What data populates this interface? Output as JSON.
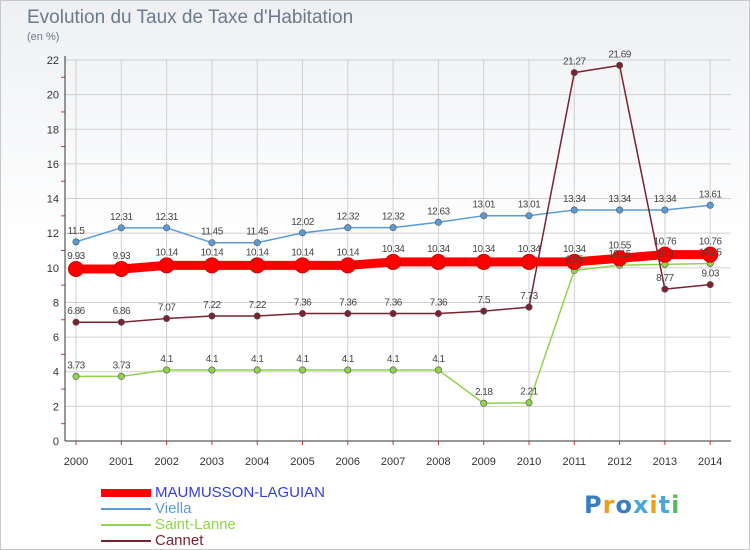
{
  "title": "Evolution du Taux de Taxe d'Habitation",
  "unit_label": "(en %)",
  "logo": {
    "text": "Proxiti",
    "colors": [
      "#3a7ec2",
      "#e8a020",
      "#3a7ec2",
      "#4aa8d8",
      "#e8a020",
      "#4aa8d8",
      "#5cb85c"
    ]
  },
  "chart_data": {
    "type": "line",
    "x": [
      "2000",
      "2001",
      "2002",
      "2003",
      "2004",
      "2005",
      "2006",
      "2007",
      "2008",
      "2009",
      "2010",
      "2011",
      "2012",
      "2013",
      "2014"
    ],
    "ylim": [
      0,
      22
    ],
    "yticks": [
      "0",
      "2",
      "4",
      "6",
      "8",
      "10",
      "12",
      "14",
      "16",
      "18",
      "20",
      "22"
    ],
    "grid": true,
    "legend_position": "bottom-left",
    "series": [
      {
        "name": "MAUMUSSON-LAGUIAN",
        "color": "#ff0000",
        "values": [
          9.93,
          9.93,
          10.14,
          10.14,
          10.14,
          10.14,
          10.14,
          10.34,
          10.34,
          10.34,
          10.34,
          10.34,
          10.55,
          10.76,
          10.76
        ],
        "labels": [
          "9.93",
          "9.93",
          "10.14",
          "10.14",
          "10.14",
          "10.14",
          "10.14",
          "10.34",
          "10.34",
          "10.34",
          "10.34",
          "10.34",
          "10.55",
          "10.76",
          "10.76"
        ]
      },
      {
        "name": "Viella",
        "color": "#5b9bd5",
        "values": [
          11.5,
          12.31,
          12.31,
          11.45,
          11.45,
          12.02,
          12.32,
          12.32,
          12.63,
          13.01,
          13.01,
          13.34,
          13.34,
          13.34,
          13.61
        ],
        "labels": [
          "11.5",
          "12.31",
          "12.31",
          "11.45",
          "11.45",
          "12.02",
          "12.32",
          "12.32",
          "12.63",
          "13.01",
          "13.01",
          "13.34",
          "13.34",
          "13.34",
          "13.61"
        ]
      },
      {
        "name": "Saint-Lanne",
        "color": "#8fd44a",
        "values": [
          3.73,
          3.73,
          4.1,
          4.1,
          4.1,
          4.1,
          4.1,
          4.1,
          4.1,
          2.18,
          2.21,
          9.85,
          10.15,
          10.2,
          10.25
        ],
        "labels": [
          "3.73",
          "3.73",
          "4.1",
          "4.1",
          "4.1",
          "4.1",
          "4.1",
          "4.1",
          "4.1",
          "2.18",
          "2.21",
          "9.85",
          "10.15",
          "10.2",
          "10.25"
        ]
      },
      {
        "name": "Cannet",
        "color": "#7a2230",
        "values": [
          6.86,
          6.86,
          7.07,
          7.22,
          7.22,
          7.36,
          7.36,
          7.36,
          7.36,
          7.5,
          7.73,
          21.27,
          21.69,
          8.77,
          9.03
        ],
        "labels": [
          "6.86",
          "6.86",
          "7.07",
          "7.22",
          "7.22",
          "7.36",
          "7.36",
          "7.36",
          "7.36",
          "7.5",
          "7.73",
          "21.27",
          "21.69",
          "8.77",
          "9.03"
        ]
      }
    ]
  }
}
